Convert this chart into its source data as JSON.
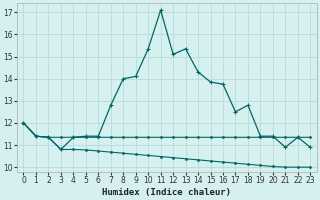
{
  "xlabel": "Humidex (Indice chaleur)",
  "bg_color": "#d6f0f0",
  "grid_color": "#b8dada",
  "line_color": "#006666",
  "xlim": [
    -0.5,
    23.5
  ],
  "ylim": [
    9.8,
    17.4
  ],
  "xticks": [
    0,
    1,
    2,
    3,
    4,
    5,
    6,
    7,
    8,
    9,
    10,
    11,
    12,
    13,
    14,
    15,
    16,
    17,
    18,
    19,
    20,
    21,
    22,
    23
  ],
  "yticks": [
    10,
    11,
    12,
    13,
    14,
    15,
    16,
    17
  ],
  "series_main_x": [
    0,
    1,
    2,
    3,
    4,
    5,
    6,
    7,
    8,
    9,
    10,
    11,
    12,
    13,
    14,
    15,
    16,
    17,
    18,
    19,
    20,
    21,
    22,
    23
  ],
  "series_main_y": [
    12.0,
    11.4,
    11.35,
    10.8,
    11.35,
    11.4,
    11.4,
    12.8,
    14.0,
    14.1,
    15.35,
    17.1,
    15.1,
    15.35,
    14.3,
    13.85,
    13.75,
    12.5,
    12.8,
    11.4,
    11.4,
    10.9,
    11.35,
    10.9
  ],
  "series_flat_x": [
    0,
    1,
    2,
    3,
    4,
    5,
    6,
    7,
    8,
    9,
    10,
    11,
    12,
    13,
    14,
    15,
    16,
    17,
    18,
    19,
    20,
    21,
    22,
    23
  ],
  "series_flat_y": [
    12.0,
    11.4,
    11.35,
    11.35,
    11.35,
    11.35,
    11.35,
    11.35,
    11.35,
    11.35,
    11.35,
    11.35,
    11.35,
    11.35,
    11.35,
    11.35,
    11.35,
    11.35,
    11.35,
    11.35,
    11.35,
    11.35,
    11.35,
    11.35
  ],
  "series_decline_x": [
    0,
    1,
    2,
    3,
    4,
    5,
    6,
    7,
    8,
    9,
    10,
    11,
    12,
    13,
    14,
    15,
    16,
    17,
    18,
    19,
    20,
    21,
    22,
    23
  ],
  "series_decline_y": [
    12.0,
    11.4,
    11.35,
    10.8,
    10.8,
    10.78,
    10.73,
    10.68,
    10.63,
    10.58,
    10.53,
    10.48,
    10.43,
    10.38,
    10.33,
    10.28,
    10.23,
    10.18,
    10.13,
    10.08,
    10.03,
    10.0,
    10.0,
    10.0
  ]
}
